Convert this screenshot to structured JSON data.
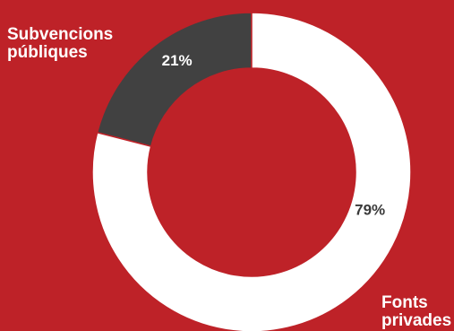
{
  "chart_data": {
    "type": "pie",
    "categories": [
      "Subvencions públiques",
      "Fonts privades"
    ],
    "values": [
      21,
      79
    ],
    "value_labels": [
      "21%",
      "79%"
    ],
    "category_label_lines": [
      [
        "Subvencions",
        "públiques"
      ],
      [
        "Fonts",
        "privades"
      ]
    ],
    "colors": [
      "#414141",
      "#ffffff"
    ],
    "value_label_colors": [
      "#ffffff",
      "#3a3a3a"
    ],
    "background_color": "#be2228",
    "donut": true
  }
}
